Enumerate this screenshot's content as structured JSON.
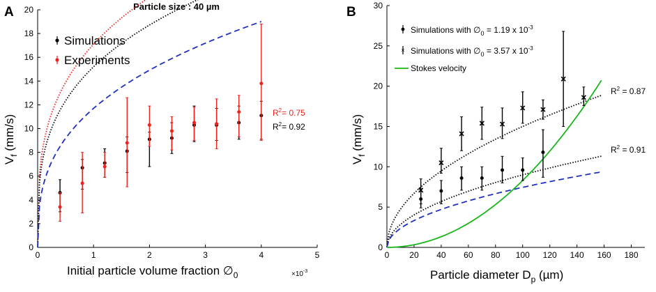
{
  "colors": {
    "simulations": "#000000",
    "experiments": "#e8251f",
    "baseline": "#1f2fbf",
    "stokes": "#19b51d"
  },
  "chart_data": [
    {
      "panel": "A",
      "type": "scatter",
      "title": "Particle size : 40 µm",
      "xlabel_main": "Initial particle volume fraction ∅",
      "xlabel_sub": "0",
      "x_multiplier": "×10",
      "x_multiplier_exp": "-3",
      "ylabel_main": "V",
      "ylabel_sub": "f",
      "ylabel_unit": " (mm/s)",
      "xlim": [
        0,
        5
      ],
      "ylim": [
        0,
        20
      ],
      "xticks": [
        0,
        1,
        2,
        3,
        4,
        5
      ],
      "yticks": [
        0,
        2,
        4,
        6,
        8,
        10,
        12,
        14,
        16,
        18,
        20
      ],
      "legend_position": "top-left",
      "series": [
        {
          "name": "Simulations",
          "color_key": "simulations",
          "x": [
            0.4,
            0.8,
            1.2,
            1.6,
            2.0,
            2.4,
            2.8,
            3.2,
            3.6,
            4.0
          ],
          "y": [
            4.6,
            6.7,
            7.1,
            8.1,
            9.1,
            9.2,
            10.3,
            10.3,
            10.5,
            11.1
          ],
          "ylow": [
            3.0,
            4.9,
            5.9,
            6.3,
            6.8,
            7.9,
            8.9,
            9.0,
            9.1,
            9.1
          ],
          "yhigh": [
            5.7,
            7.4,
            8.3,
            9.3,
            9.7,
            10.5,
            11.9,
            11.7,
            11.9,
            12.3
          ]
        },
        {
          "name": "Experiments",
          "color_key": "experiments",
          "x": [
            0.4,
            0.8,
            1.2,
            1.6,
            2.0,
            2.4,
            2.8,
            3.2,
            3.6,
            4.0
          ],
          "y": [
            3.4,
            5.4,
            6.8,
            8.8,
            10.3,
            9.8,
            10.5,
            10.4,
            11.4,
            13.8
          ],
          "ylow": [
            2.2,
            2.9,
            5.9,
            5.1,
            8.5,
            8.2,
            9.0,
            8.3,
            9.3,
            9.0
          ],
          "yhigh": [
            4.6,
            8.0,
            8.0,
            12.6,
            11.9,
            11.0,
            11.8,
            12.5,
            12.8,
            18.8
          ]
        }
      ],
      "fits": [
        {
          "color_key": "experiments",
          "style": "dotted",
          "a": 17.1,
          "b": 0.3,
          "xmax": 4.0,
          "label": "R",
          "label_sup": "2",
          "label_rest": "= 0.75"
        },
        {
          "color_key": "simulations",
          "style": "dotted",
          "a": 15.2,
          "b": 0.3,
          "xmax": 4.0,
          "label": "R",
          "label_sup": "2",
          "label_rest": "= 0.92"
        },
        {
          "color_key": "baseline",
          "style": "dashed",
          "a": 11.7,
          "b": 0.35,
          "xmax": 4.0
        }
      ]
    },
    {
      "panel": "B",
      "type": "scatter",
      "xlabel_main": "Particle diameter D",
      "xlabel_sub": "p",
      "xlabel_unit": " (µm)",
      "ylabel_main": "V",
      "ylabel_sub": "f",
      "ylabel_unit": " (mm/s)",
      "xlim": [
        0,
        190
      ],
      "ylim": [
        0,
        30
      ],
      "xticks": [
        0,
        20,
        40,
        60,
        80,
        100,
        120,
        140,
        160,
        180
      ],
      "yticks": [
        0,
        5,
        10,
        15,
        20,
        25,
        30
      ],
      "legend_position": "top-left",
      "legend": [
        {
          "text": "Simulations with ∅",
          "sub": "0",
          "rest": " = 1.19 x 10",
          "sup": "-3",
          "marker": "dot"
        },
        {
          "text": "Simulations with ∅",
          "sub": "0",
          "rest": " = 3.57 x 10",
          "sup": "-3",
          "marker": "cross"
        },
        {
          "text": "Stokes velocity",
          "marker": "line"
        }
      ],
      "series": [
        {
          "name": "Simulations with ∅0 = 1.19 x 10^-3",
          "marker": "dot",
          "color_key": "simulations",
          "x": [
            25,
            40,
            55,
            70,
            85,
            100,
            115
          ],
          "y": [
            6.0,
            7.0,
            8.6,
            8.6,
            9.6,
            9.6,
            11.8
          ],
          "ylow": [
            4.9,
            5.4,
            7.1,
            7.1,
            8.0,
            8.3,
            8.7
          ],
          "yhigh": [
            7.2,
            8.3,
            10.0,
            10.0,
            11.3,
            11.1,
            14.6
          ]
        },
        {
          "name": "Simulations with ∅0 = 3.57 x 10^-3",
          "marker": "cross",
          "color_key": "simulations",
          "x": [
            25,
            40,
            55,
            70,
            85,
            100,
            115,
            130,
            145
          ],
          "y": [
            7.1,
            10.5,
            14.1,
            15.4,
            15.3,
            17.3,
            17.1,
            20.9,
            18.6
          ],
          "ylow": [
            5.4,
            9.2,
            12.0,
            13.4,
            13.5,
            15.4,
            15.9,
            15.0,
            17.6
          ],
          "yhigh": [
            8.5,
            12.3,
            16.2,
            17.4,
            17.3,
            19.3,
            18.3,
            26.8,
            19.9
          ]
        }
      ],
      "fits": [
        {
          "color_key": "simulations",
          "style": "dotted",
          "a": 1.5,
          "b": 0.5,
          "xmax": 158,
          "label": "R",
          "label_sup": "2",
          "label_rest": " = 0.87"
        },
        {
          "color_key": "simulations",
          "style": "dotted",
          "a": 0.9,
          "b": 0.5,
          "xmax": 158,
          "label": "R",
          "label_sup": "2",
          "label_rest": " = 0.91"
        },
        {
          "color_key": "baseline",
          "style": "dashed",
          "a": 0.745,
          "b": 0.5,
          "xmax": 158
        }
      ],
      "stokes": {
        "color_key": "stokes",
        "coef": 0.00083,
        "xmax": 158
      }
    }
  ]
}
